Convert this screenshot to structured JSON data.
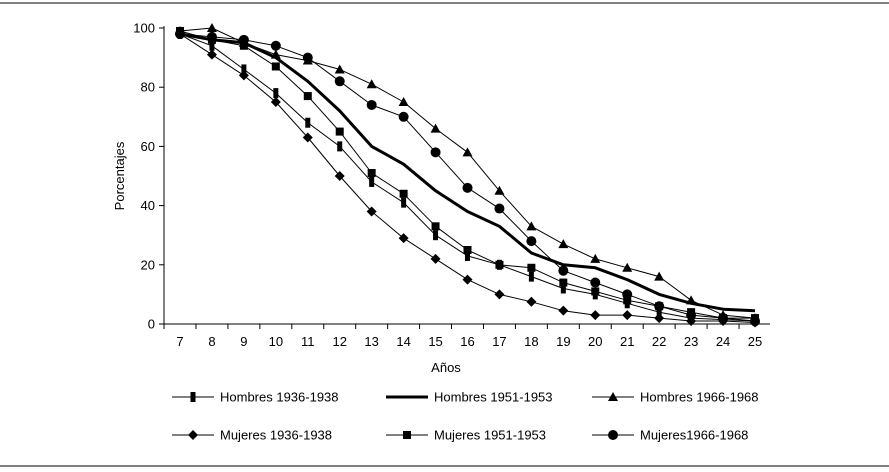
{
  "chart_data": {
    "type": "line",
    "title": "",
    "xlabel": "Años",
    "ylabel": "Porcentajes",
    "x": [
      7,
      8,
      9,
      10,
      11,
      12,
      13,
      14,
      15,
      16,
      17,
      18,
      19,
      20,
      21,
      22,
      23,
      24,
      25
    ],
    "xlim": [
      7,
      25
    ],
    "ylim": [
      0,
      100
    ],
    "yticks": [
      0,
      20,
      40,
      60,
      80,
      100
    ],
    "grid": false,
    "legend_position": "bottom",
    "series": [
      {
        "name": "Hombres 1936-1938",
        "marker": "bar",
        "values": [
          98,
          94,
          86,
          78,
          68,
          60,
          48,
          41,
          30,
          23,
          20,
          16,
          12,
          10,
          7,
          4,
          2,
          1.5,
          1
        ]
      },
      {
        "name": "Hombres 1951-1953",
        "marker": "none",
        "values": [
          98,
          96,
          95,
          90,
          82,
          72,
          60,
          54,
          45,
          38,
          33,
          24,
          20,
          19,
          15,
          10,
          7,
          5,
          4.5
        ]
      },
      {
        "name": "Hombres 1966-1968",
        "marker": "triangle",
        "values": [
          99,
          100,
          95,
          91,
          89,
          86,
          81,
          75,
          66,
          58,
          45,
          33,
          27,
          22,
          19,
          16,
          8,
          3,
          2
        ]
      },
      {
        "name": "Mujeres 1936-1938",
        "marker": "diamond",
        "values": [
          98,
          91,
          84,
          75,
          63,
          50,
          38,
          29,
          22,
          15,
          10,
          7.5,
          4.5,
          3,
          3,
          2,
          1,
          1,
          0.5
        ]
      },
      {
        "name": "Mujeres 1951-1953",
        "marker": "square",
        "values": [
          99,
          96,
          94,
          87,
          77,
          65,
          51,
          44,
          33,
          25,
          20,
          19,
          14,
          11,
          8,
          6,
          4,
          2,
          2
        ]
      },
      {
        "name": "Mujeres1966-1968",
        "marker": "circle",
        "values": [
          98,
          97,
          96,
          94,
          90,
          82,
          74,
          70,
          58,
          46,
          39,
          28,
          18,
          14,
          10,
          6,
          3,
          2,
          1
        ]
      }
    ]
  }
}
